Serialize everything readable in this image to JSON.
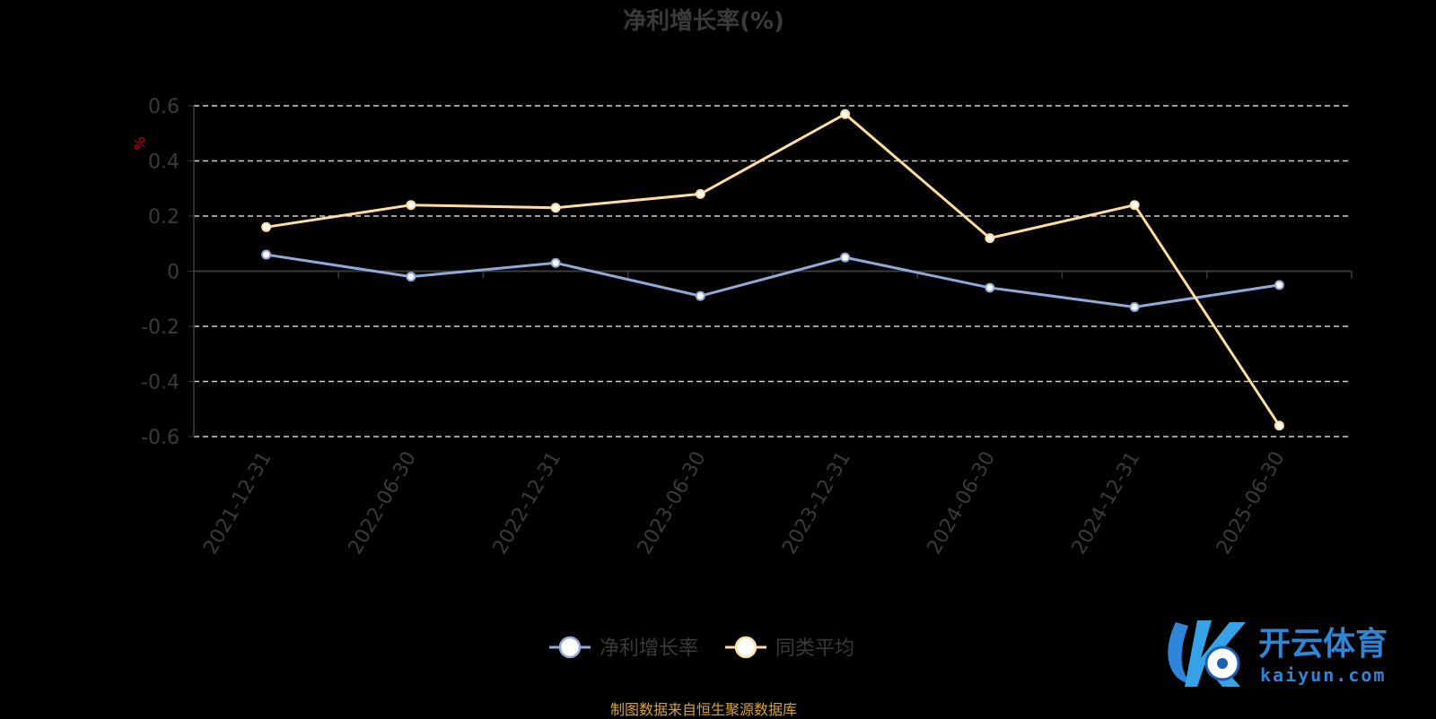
{
  "chart_data": {
    "type": "line",
    "title": "净利增长率(%)",
    "ylabel": "%",
    "categories": [
      "2021-12-31",
      "2022-06-30",
      "2022-12-31",
      "2023-06-30",
      "2023-12-31",
      "2024-06-30",
      "2024-12-31",
      "2025-06-30"
    ],
    "yticks": [
      "0.6",
      "0.4",
      "0.2",
      "0",
      "-0.2",
      "-0.4",
      "-0.6"
    ],
    "ylim": [
      -0.6,
      0.6
    ],
    "grid": true,
    "legend_position": "bottom",
    "series": [
      {
        "name": "净利增长率",
        "color": "#8fa9d8",
        "values": [
          0.06,
          -0.02,
          0.03,
          -0.09,
          0.05,
          -0.06,
          -0.13,
          -0.05
        ]
      },
      {
        "name": "同类平均",
        "color": "#ffdca0",
        "values": [
          0.16,
          0.24,
          0.23,
          0.28,
          0.57,
          0.12,
          0.24,
          -0.56
        ]
      }
    ]
  },
  "source_text": "制图数据来自恒生聚源数据库",
  "logo": {
    "name": "开云体育",
    "sub": "kaiyun.com"
  }
}
